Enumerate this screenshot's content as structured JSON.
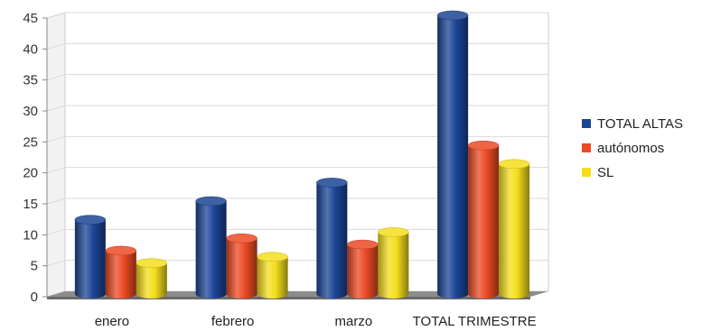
{
  "chart_data": {
    "type": "bar",
    "style": "3d-cylinder",
    "categories": [
      "enero",
      "febrero",
      "marzo",
      "TOTAL TRIMESTRE"
    ],
    "series": [
      {
        "name": "TOTAL ALTAS",
        "values": [
          12,
          15,
          18,
          45
        ],
        "color": "#1c4596"
      },
      {
        "name": "autónomos",
        "values": [
          7,
          9,
          8,
          24
        ],
        "color": "#ec4a25"
      },
      {
        "name": "SL",
        "values": [
          5,
          6,
          10,
          21
        ],
        "color": "#f4de1c"
      }
    ],
    "ylim": [
      0,
      45
    ],
    "yticks": [
      0,
      5,
      10,
      15,
      20,
      25,
      30,
      35,
      40,
      45
    ],
    "grid": true,
    "legend": "right",
    "floor_color": "#7a7a7a"
  }
}
